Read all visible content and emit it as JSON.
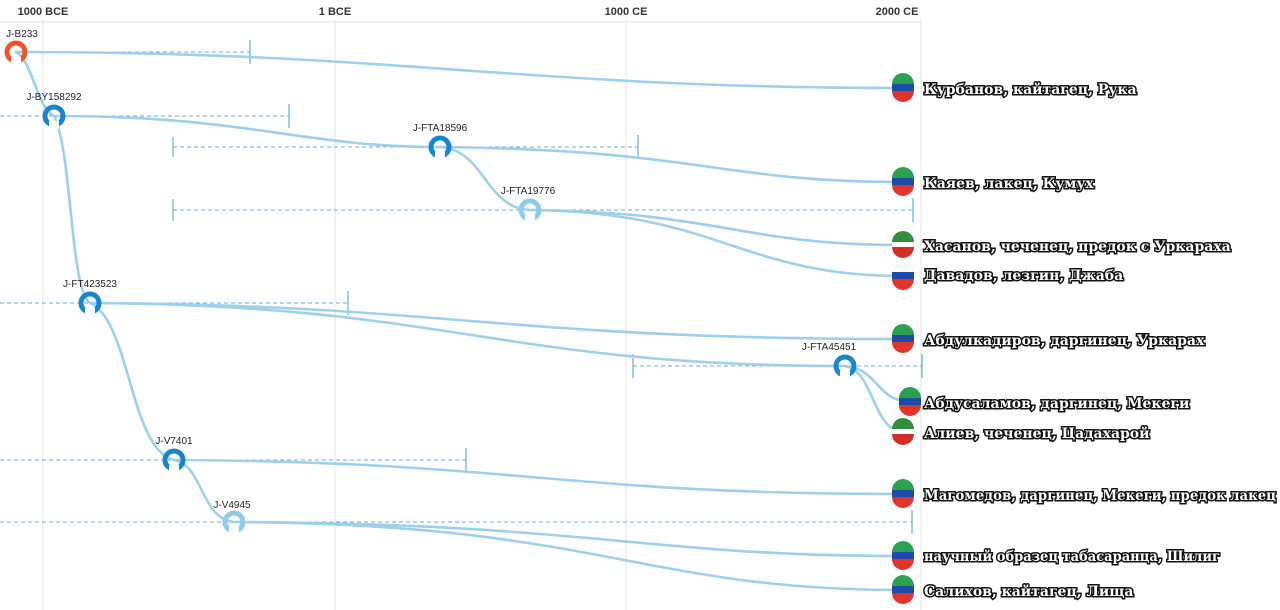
{
  "timeline": {
    "ticks": [
      "1000 BCE",
      "1 BCE",
      "1000 CE",
      "2000 CE"
    ]
  },
  "colors": {
    "branch": "#9fd0ea",
    "root_node": "#f0522d",
    "node_dark": "#1a86c8",
    "node_light": "#8ecbe8",
    "ci_line": "#6aaed0"
  },
  "nodes": [
    {
      "id": "J-B233",
      "style": "root"
    },
    {
      "id": "J-BY158292",
      "style": "dark"
    },
    {
      "id": "J-FTA18596",
      "style": "dark"
    },
    {
      "id": "J-FTA19776",
      "style": "light"
    },
    {
      "id": "J-FT423523",
      "style": "dark"
    },
    {
      "id": "J-FTA45451",
      "style": "dark"
    },
    {
      "id": "J-V7401",
      "style": "dark"
    },
    {
      "id": "J-V4945",
      "style": "light"
    }
  ],
  "samples": [
    {
      "label": "Курбанов, кайтагец, Рука",
      "flag": "dagestan"
    },
    {
      "label": "Каяев, лакец, Кумух",
      "flag": "dagestan"
    },
    {
      "label": "Хасанов, чеченец, предок с Уркараха",
      "flag": "chechnya"
    },
    {
      "label": "Давадов, лезгин, Джаба",
      "flag": "russia"
    },
    {
      "label": "Абдулкадиров, даргинец, Уркарах",
      "flag": "dagestan"
    },
    {
      "label": "Абдусаламов, даргинец, Мекеги",
      "flag": "dagestan"
    },
    {
      "label": "Алиев, чеченец, Цадахарой",
      "flag": "chechnya"
    },
    {
      "label": "Магомедов, даргинец, Мекеги, предок лакец",
      "flag": "dagestan"
    },
    {
      "label": "научный образец табасаранца, Шилиг",
      "flag": "dagestan"
    },
    {
      "label": "Салихов, кайтагец, Лища",
      "flag": "dagestan"
    }
  ]
}
